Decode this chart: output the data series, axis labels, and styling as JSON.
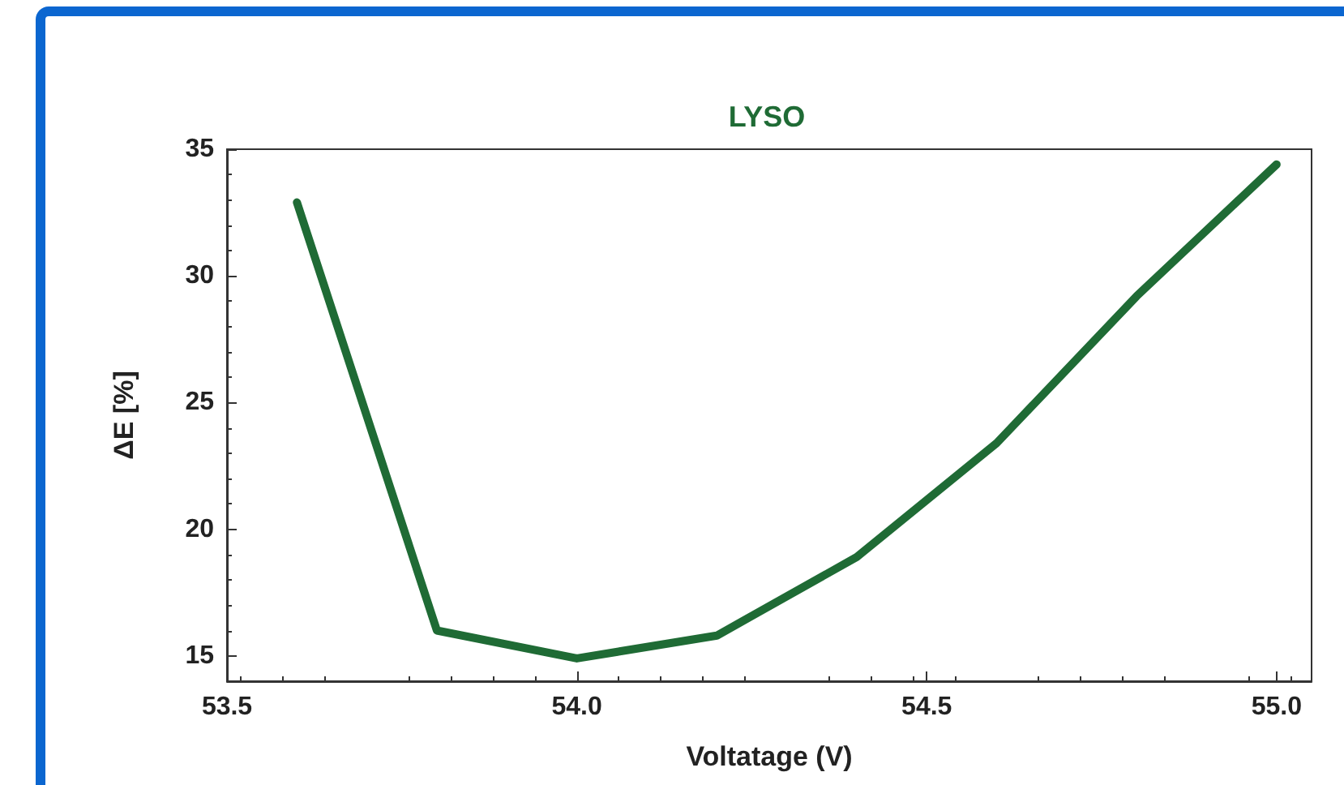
{
  "chart_data": {
    "type": "line",
    "title": "LYSO",
    "xlabel": "Voltatage (V)",
    "ylabel": "ΔE [%]",
    "x": [
      53.6,
      53.8,
      54.0,
      54.2,
      54.4,
      54.6,
      54.8,
      55.0
    ],
    "series": [
      {
        "color": "#1f6b35",
        "values": [
          32.9,
          16.0,
          14.9,
          15.8,
          18.9,
          23.4,
          29.2,
          34.4
        ]
      }
    ],
    "xlim": [
      53.5,
      55.05
    ],
    "xticks": [
      {
        "value": 53.5,
        "label": "53.5"
      },
      {
        "value": 54,
        "label": "54.0"
      },
      {
        "value": 54.5,
        "label": "54.5"
      },
      {
        "value": 55,
        "label": "55.0"
      }
    ],
    "ylim": [
      14,
      35
    ],
    "yticks": [
      15,
      20,
      25,
      30,
      35
    ],
    "grid": false,
    "marker": "none",
    "line_style": "solid"
  }
}
